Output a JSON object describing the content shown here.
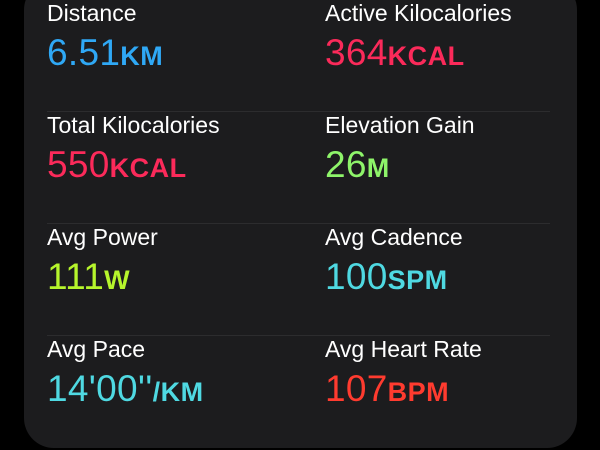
{
  "colors": {
    "card_bg": "#1c1c1e",
    "distance": "#2fa8f5",
    "kilocalories": "#fb2a5a",
    "elevation": "#8ef46a",
    "power": "#b6f52c",
    "cadence": "#4fd9e2",
    "pace": "#4fd9e2",
    "heart_rate": "#ff3b2f"
  },
  "metrics": [
    {
      "label": "Distance",
      "value": "6.51",
      "unit": "KM"
    },
    {
      "label": "Active Kilocalories",
      "value": "364",
      "unit": "KCAL"
    },
    {
      "label": "Total Kilocalories",
      "value": "550",
      "unit": "KCAL"
    },
    {
      "label": "Elevation Gain",
      "value": "26",
      "unit": "M"
    },
    {
      "label": "Avg Power",
      "value": "111",
      "unit": "W"
    },
    {
      "label": "Avg Cadence",
      "value": "100",
      "unit": "SPM"
    },
    {
      "label": "Avg Pace",
      "value": "14'00''",
      "unit": "/KM"
    },
    {
      "label": "Avg Heart Rate",
      "value": "107",
      "unit": "BPM"
    }
  ]
}
